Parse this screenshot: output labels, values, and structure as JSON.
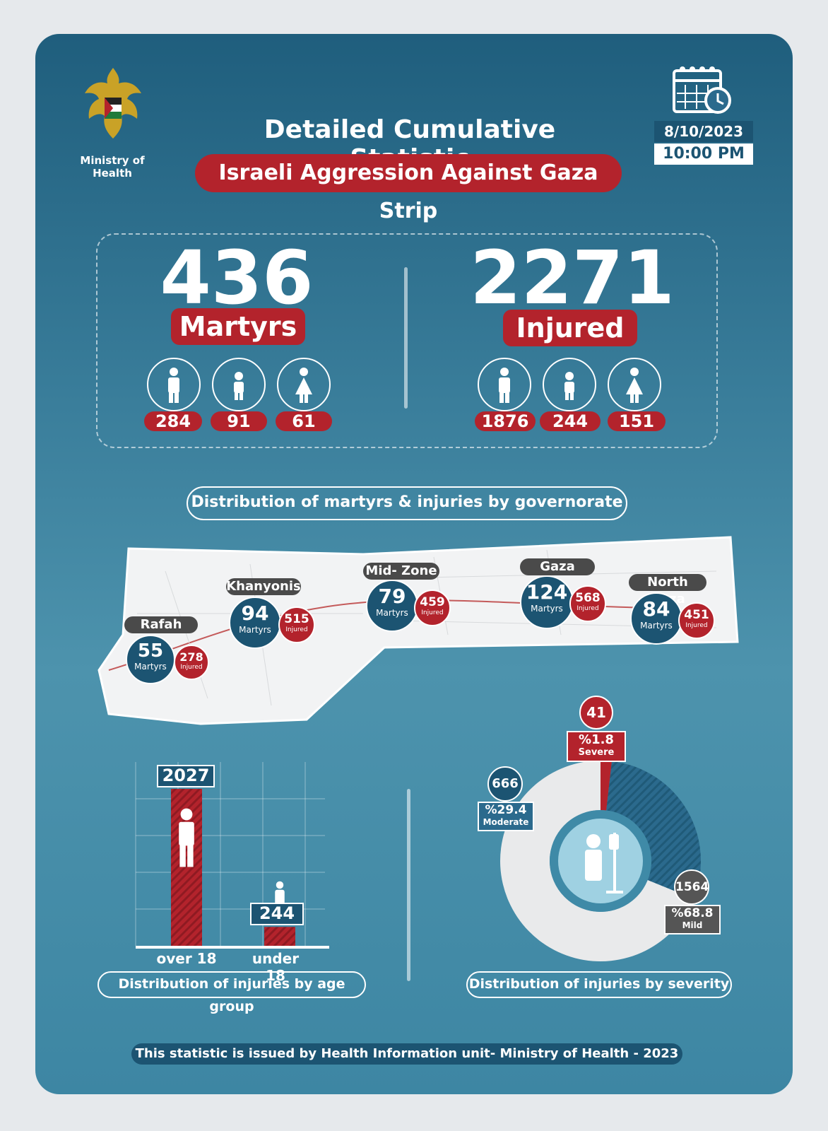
{
  "header": {
    "ministry": "Ministry of Health",
    "title": "Detailed Cumulative Statistic",
    "subtitle": "Israeli Aggression Against Gaza Strip",
    "date": "8/10/2023",
    "time": "10:00 PM"
  },
  "totals": {
    "martyrs": {
      "value": "436",
      "label": "Martyrs",
      "men": "284",
      "children": "91",
      "women": "61"
    },
    "injured": {
      "value": "2271",
      "label": "Injured",
      "men": "1876",
      "children": "244",
      "women": "151"
    }
  },
  "map": {
    "section_title": "Distribution of martyrs & injuries by governorate",
    "martyrs_word": "Martyrs",
    "injured_word": "Injured",
    "governorates": [
      {
        "name": "Rafah",
        "martyrs": "55",
        "injured": "278"
      },
      {
        "name": "Khanyonis",
        "martyrs": "94",
        "injured": "515"
      },
      {
        "name": "Mid- Zone",
        "martyrs": "79",
        "injured": "459"
      },
      {
        "name": "Gaza",
        "martyrs": "124",
        "injured": "568"
      },
      {
        "name": "North Gaza",
        "martyrs": "84",
        "injured": "451"
      }
    ]
  },
  "chart_data": [
    {
      "type": "bar",
      "title": "Distribution of injuries by age group",
      "categories": [
        "over 18",
        "under 18"
      ],
      "values": [
        2027,
        244
      ],
      "ylim": [
        0,
        2027
      ]
    },
    {
      "type": "pie",
      "title": "Distribution of injuries by severity",
      "slices": [
        {
          "label": "Severe",
          "value": 41,
          "percent": "%1.8",
          "color": "#b3232c"
        },
        {
          "label": "Moderate",
          "value": 666,
          "percent": "%29.4",
          "color": "#2b6a8d"
        },
        {
          "label": "Mild",
          "value": 1564,
          "percent": "%68.8",
          "color": "#e9eaeb"
        }
      ]
    }
  ],
  "footer": "This statistic is issued by Health Information unit- Ministry of Health - 2023",
  "colors": {
    "primary": "#1f5e7d",
    "accent": "#b3232c",
    "light": "#ffffff"
  }
}
